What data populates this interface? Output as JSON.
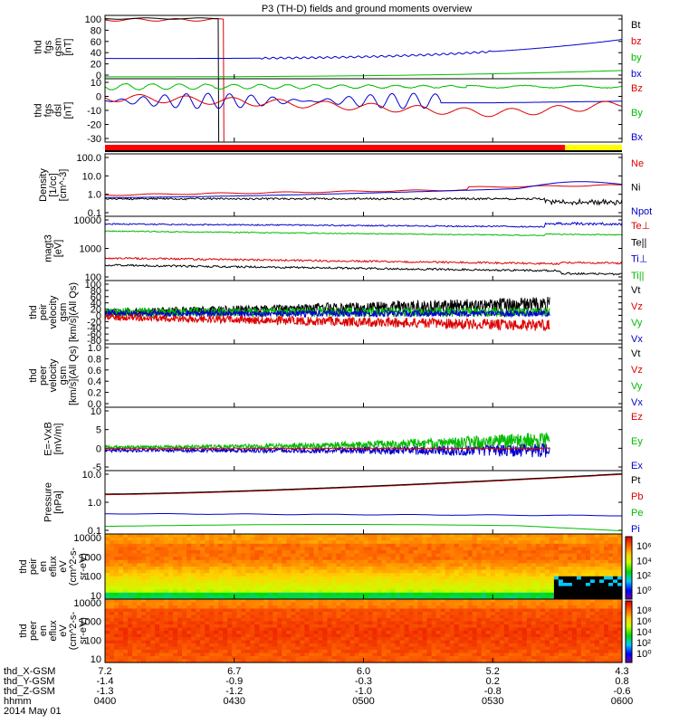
{
  "chart_data": {
    "type": "line",
    "title": "P3 (TH-D) fields and ground moments overview",
    "panels": [
      {
        "id": "fgs_gsm",
        "ylabel": [
          "thd",
          "fgs",
          "gsm",
          "[nT]"
        ],
        "yticks": [
          "100",
          "80",
          "60",
          "40",
          "20",
          "0"
        ],
        "legend": [
          {
            "name": "Bt",
            "color": "#000000"
          },
          {
            "name": "bz",
            "color": "#dd0000"
          },
          {
            "name": "by",
            "color": "#00bb00"
          },
          {
            "name": "bx",
            "color": "#0000cc"
          }
        ]
      },
      {
        "id": "fgs_dsl",
        "ylabel": [
          "thd",
          "fgs",
          "dsl",
          "[nT]"
        ],
        "yticks": [
          "10",
          "0",
          "-10",
          "-20",
          "-30"
        ],
        "legend": [
          {
            "name": "Bz",
            "color": "#dd0000"
          },
          {
            "name": "By",
            "color": "#00bb00"
          },
          {
            "name": "Bx",
            "color": "#0000cc"
          }
        ]
      },
      {
        "id": "density",
        "ylabel": [
          "Density",
          "[1/cc]",
          "[cm^-3]"
        ],
        "yticks": [
          "100.0",
          "10.0",
          "1.0",
          "0.1"
        ],
        "yscale": "log",
        "legend": [
          {
            "name": "Ne",
            "color": "#dd0000"
          },
          {
            "name": "Ni",
            "color": "#000000"
          },
          {
            "name": "Npot",
            "color": "#0000cc"
          }
        ]
      },
      {
        "id": "temperature",
        "ylabel": [
          "magt3",
          "[eV]"
        ],
        "yticks": [
          "10000",
          "1000",
          "100"
        ],
        "yscale": "log",
        "legend": [
          {
            "name": "Te⊥",
            "color": "#dd0000"
          },
          {
            "name": "Te||",
            "color": "#000000"
          },
          {
            "name": "Ti⊥",
            "color": "#0000cc"
          },
          {
            "name": "Ti||",
            "color": "#00bb00"
          }
        ]
      },
      {
        "id": "peir_velocity",
        "ylabel": [
          "thd",
          "peir",
          "velocity",
          "gsm",
          "[km/s](All Qs)"
        ],
        "yticks": [
          "100",
          "80",
          "60",
          "40",
          "20",
          "0",
          "-20",
          "-40",
          "-60",
          "-80"
        ],
        "legend": [
          {
            "name": "Vt",
            "color": "#000000"
          },
          {
            "name": "Vz",
            "color": "#dd0000"
          },
          {
            "name": "Vy",
            "color": "#00bb00"
          },
          {
            "name": "Vx",
            "color": "#0000cc"
          }
        ]
      },
      {
        "id": "peer_velocity",
        "ylabel": [
          "thd",
          "peer",
          "velocity",
          "gsm",
          "[km/s](All Qs)"
        ],
        "yticks": [
          "1.0",
          "0.8",
          "0.6",
          "0.4",
          "0.2",
          "0.0"
        ],
        "legend": [
          {
            "name": "Vt",
            "color": "#000000"
          },
          {
            "name": "Vz",
            "color": "#dd0000"
          },
          {
            "name": "Vy",
            "color": "#00bb00"
          },
          {
            "name": "Vx",
            "color": "#0000cc"
          }
        ]
      },
      {
        "id": "efield",
        "ylabel": [
          "E=-VxB",
          "[mV/m]"
        ],
        "yticks": [
          "10",
          "5",
          "0",
          "-5"
        ],
        "legend": [
          {
            "name": "Ez",
            "color": "#dd0000"
          },
          {
            "name": "Ey",
            "color": "#00bb00"
          },
          {
            "name": "Ex",
            "color": "#0000cc"
          }
        ]
      },
      {
        "id": "pressure",
        "ylabel": [
          "Pressure",
          "[nPa]"
        ],
        "yticks": [
          "10.0",
          "1.0",
          "0.1"
        ],
        "yscale": "log",
        "legend": [
          {
            "name": "Pt",
            "color": "#000000"
          },
          {
            "name": "Pb",
            "color": "#dd0000"
          },
          {
            "name": "Pe",
            "color": "#00bb00"
          },
          {
            "name": "Pi",
            "color": "#0000cc"
          }
        ]
      },
      {
        "id": "peir_eflux",
        "ylabel": [
          "thd",
          "peir",
          "en",
          "eflux",
          "eV",
          "(cm^2-s-",
          "sr-eV)"
        ],
        "yticks": [
          "10000",
          "1000",
          "100",
          "10"
        ],
        "type": "heatmap"
      },
      {
        "id": "peer_eflux",
        "ylabel": [
          "thd",
          "peer",
          "en",
          "eflux",
          "eV",
          "(cm^2-s-",
          "sr-eV)"
        ],
        "yticks": [
          "10000",
          "1000",
          "100",
          "10"
        ],
        "type": "heatmap"
      }
    ],
    "colorbar_labels": [
      "10⁶",
      "10⁴",
      "10²",
      "10⁰"
    ],
    "colorbar2_labels": [
      "10⁸",
      "10⁶",
      "10⁴",
      "10²",
      "10⁰"
    ],
    "x_axis": {
      "rows": [
        {
          "label": "thd_X-GSM",
          "values": [
            "7.2",
            "6.7",
            "6.0",
            "5.2",
            "4.3"
          ]
        },
        {
          "label": "thd_Y-GSM",
          "values": [
            "-1.4",
            "-0.9",
            "-0.3",
            "0.2",
            "0.8"
          ]
        },
        {
          "label": "thd_Z-GSM",
          "values": [
            "-1.3",
            "-1.2",
            "-1.0",
            "-0.8",
            "-0.6"
          ]
        },
        {
          "label": "hhmm",
          "values": [
            "0400",
            "0430",
            "0500",
            "0530",
            "0600"
          ]
        }
      ],
      "date": "2014 May 01",
      "range": [
        "04:00",
        "06:00"
      ]
    }
  }
}
